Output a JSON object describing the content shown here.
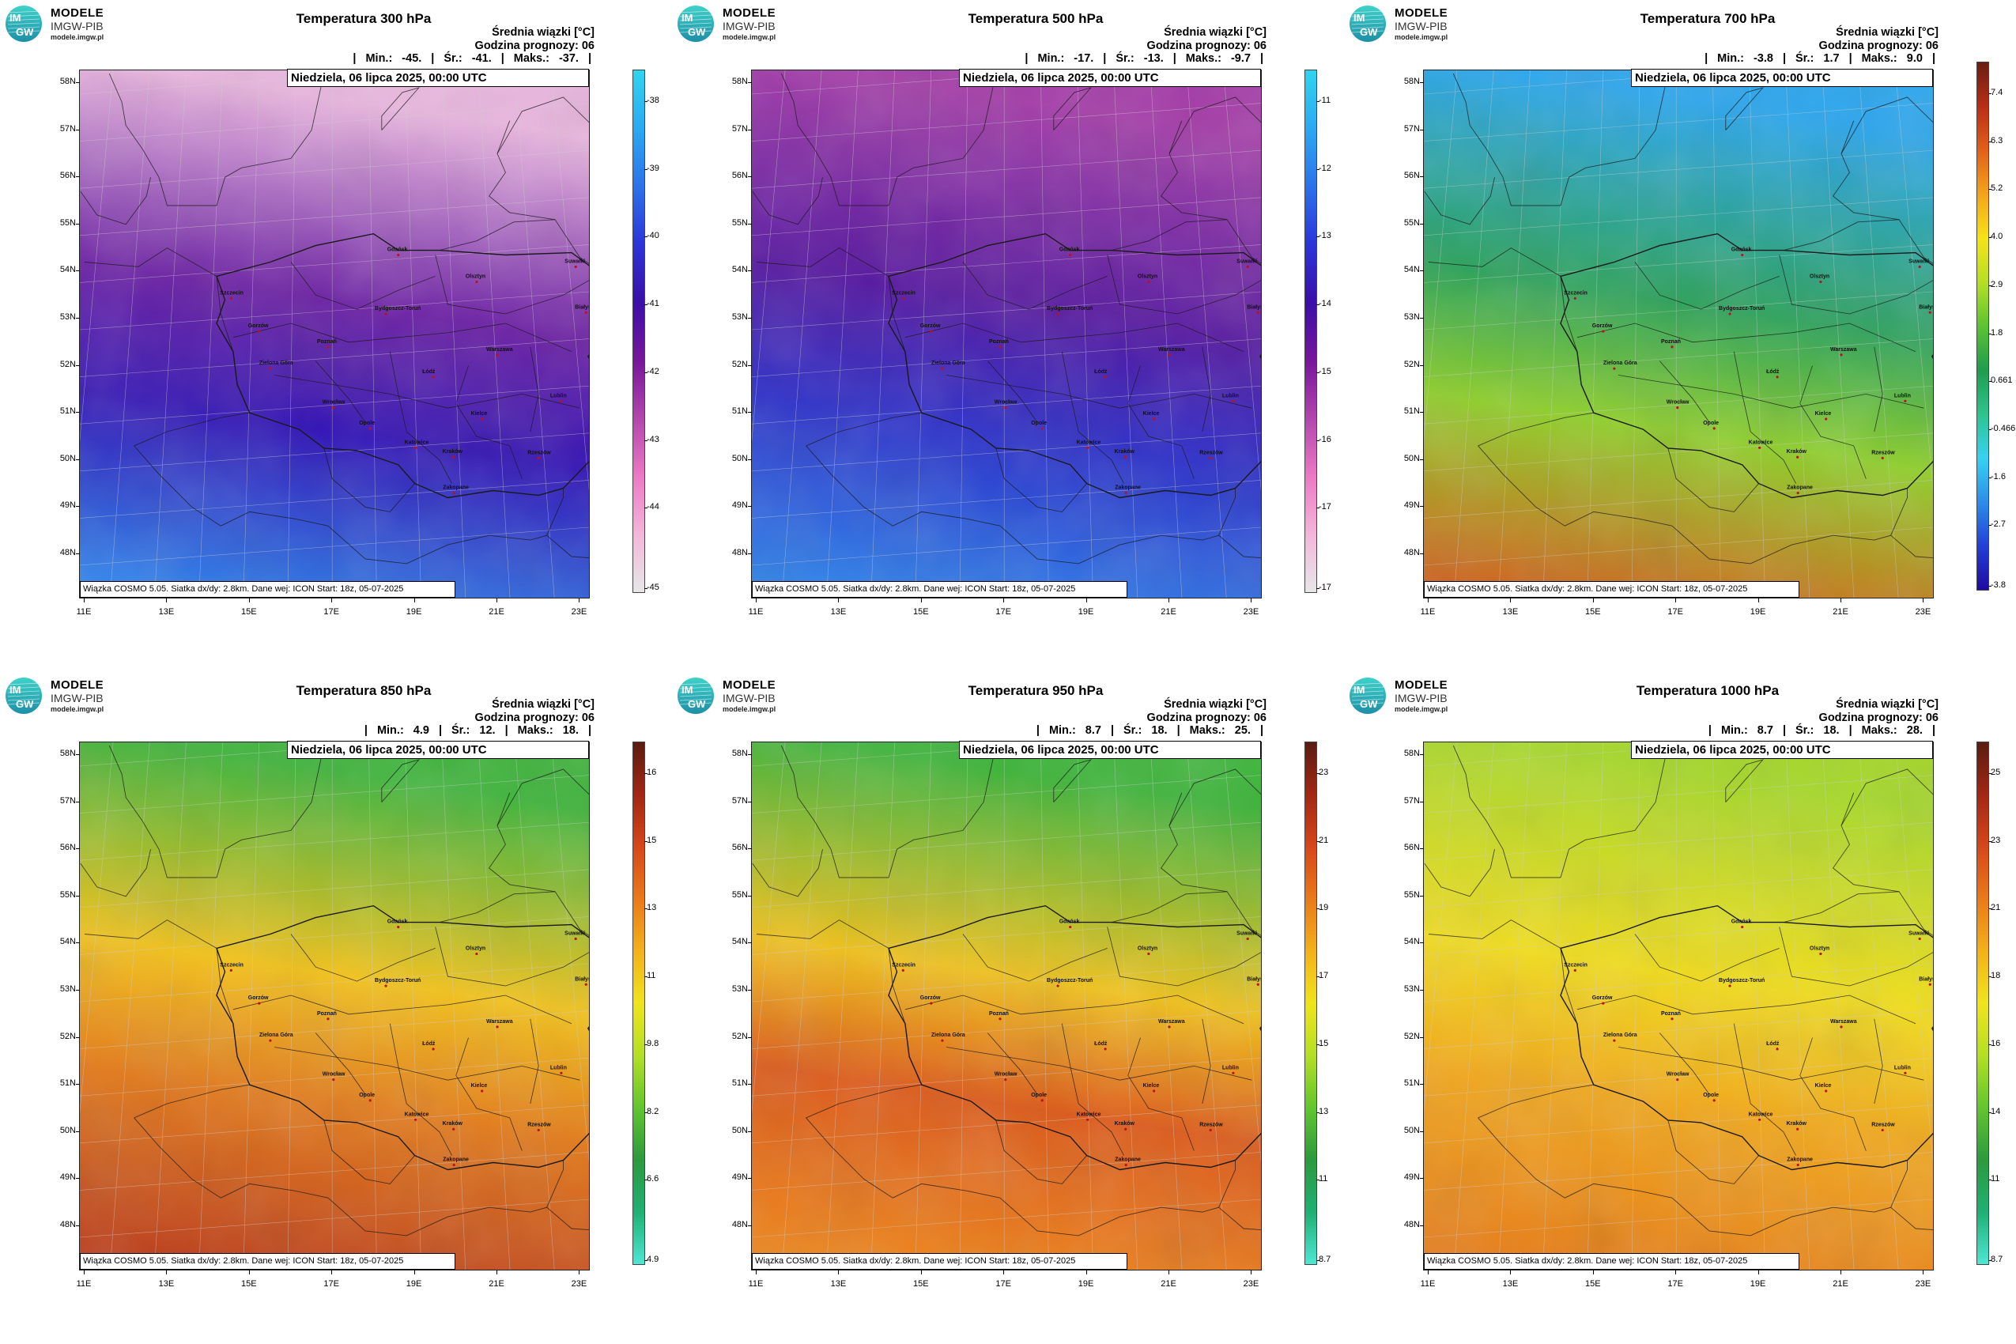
{
  "logo": {
    "brand": "MODELE",
    "org": "IMGW-PIB",
    "site": "modele.imgw.pl",
    "disk_text": "IM GW"
  },
  "common": {
    "avg_label": "Średnia wiązki [°C]",
    "forecast_label": "Godzina prognozy: 06",
    "date_label": "Niedziela, 06 lipca 2025, 00:00 UTC",
    "footer": "Wiązka COSMO 5.05. Siatka dx/dy: 2.8km. Dane wej: ICON Start: 18z, 05-07-2025",
    "stat_min_label": "Min.:",
    "stat_avg_label": "Śr.:",
    "stat_max_label": "Maks.:",
    "lat_labels": [
      "58N",
      "57N",
      "56N",
      "55N",
      "54N",
      "53N",
      "52N",
      "51N",
      "50N",
      "49N",
      "48N"
    ],
    "lon_labels": [
      "11E",
      "13E",
      "15E",
      "17E",
      "19E",
      "21E",
      "23E"
    ]
  },
  "cities": [
    {
      "name": "Gdańsk",
      "lon": 18.6,
      "lat": 54.35
    },
    {
      "name": "Suwałki",
      "lon": 22.9,
      "lat": 54.1
    },
    {
      "name": "Olsztyn",
      "lon": 20.5,
      "lat": 53.78
    },
    {
      "name": "Szczecin",
      "lon": 14.55,
      "lat": 53.43
    },
    {
      "name": "Białystok",
      "lon": 23.15,
      "lat": 53.13
    },
    {
      "name": "Bydgoszcz-Toruń",
      "lon": 18.3,
      "lat": 53.1
    },
    {
      "name": "Gorzów",
      "lon": 15.23,
      "lat": 52.73
    },
    {
      "name": "Poznań",
      "lon": 16.9,
      "lat": 52.4
    },
    {
      "name": "Warszawa",
      "lon": 21.0,
      "lat": 52.23
    },
    {
      "name": "Zielona Góra",
      "lon": 15.5,
      "lat": 51.94
    },
    {
      "name": "Łódź",
      "lon": 19.45,
      "lat": 51.76
    },
    {
      "name": "Lublin",
      "lon": 22.55,
      "lat": 51.25
    },
    {
      "name": "Wrocław",
      "lon": 17.03,
      "lat": 51.11
    },
    {
      "name": "Kielce",
      "lon": 20.63,
      "lat": 50.87
    },
    {
      "name": "Opole",
      "lon": 17.92,
      "lat": 50.67
    },
    {
      "name": "Katowice",
      "lon": 19.02,
      "lat": 50.26
    },
    {
      "name": "Kraków",
      "lon": 19.94,
      "lat": 50.06
    },
    {
      "name": "Rzeszów",
      "lon": 22.0,
      "lat": 50.04
    },
    {
      "name": "Zakopane",
      "lon": 19.95,
      "lat": 49.3
    }
  ],
  "panels": [
    {
      "title": "Temperatura 300 hPa",
      "stats": {
        "min": "-45.",
        "avg": "-41.",
        "max": "-37."
      },
      "colorbar": {
        "labels": [
          "-38",
          "-39",
          "-40",
          "-41",
          "-42",
          "-43",
          "-44",
          "-45"
        ],
        "top_label": "",
        "colors": [
          "#e7e7e7",
          "#f3b6da",
          "#ec79c4",
          "#b246ad",
          "#77169b",
          "#3a0ea8",
          "#2b35d8",
          "#2c72ea",
          "#2ba9f2",
          "#2fd5ef"
        ]
      },
      "field": {
        "n": "#ebb7e0",
        "mid": "#6a1fa3",
        "midlow": "#3416b5",
        "s": "#2b8cf0"
      }
    },
    {
      "title": "Temperatura 500 hPa",
      "stats": {
        "min": "-17.",
        "avg": "-13.",
        "max": "-9.7"
      },
      "colorbar": {
        "labels": [
          "-11",
          "-12",
          "-13",
          "-14",
          "-15",
          "-16",
          "-17",
          "-17"
        ],
        "top_label": "",
        "colors": [
          "#e7e7e7",
          "#f3b6da",
          "#ec79c4",
          "#b246ad",
          "#77169b",
          "#3a0ea8",
          "#2b35d8",
          "#2c72ea",
          "#2ba9f2",
          "#2fd5ef"
        ]
      },
      "field": {
        "n": "#a43ea8",
        "mid": "#5618a0",
        "midlow": "#2c2ec8",
        "s": "#2d8cef"
      }
    },
    {
      "title": "Temperatura 700 hPa",
      "stats": {
        "min": "-3.8",
        "avg": "1.7",
        "max": "9.0"
      },
      "colorbar": {
        "labels": [
          "7.4",
          "6.3",
          "5.2",
          "4.0",
          "2.9",
          "1.8",
          "0.661",
          "-0.466",
          "-1.6",
          "-2.7",
          "-3.8"
        ],
        "top_label": "",
        "colors": [
          "#1f0aa0",
          "#2240d6",
          "#2c8ee8",
          "#36d2f2",
          "#2fc38d",
          "#1f9c4e",
          "#5cc331",
          "#b6df25",
          "#f6e318",
          "#f3a41b",
          "#e2601a",
          "#b82e16",
          "#6a1d12"
        ]
      },
      "field": {
        "n": "#2aa6ee",
        "mid": "#2ca25a",
        "midlow": "#8fcf2a",
        "s": "#d9571a"
      }
    },
    {
      "title": "Temperatura 850 hPa",
      "stats": {
        "min": "4.9",
        "avg": "12.",
        "max": "18."
      },
      "colorbar": {
        "labels": [
          "16",
          "15",
          "13",
          "11",
          "9.8",
          "8.2",
          "6.6",
          "4.9"
        ],
        "top_label": "",
        "colors": [
          "#4fe6d3",
          "#1fb074",
          "#2c9a3e",
          "#63c52f",
          "#b4df24",
          "#f0e41c",
          "#f3b11a",
          "#e97a1a",
          "#d6471a",
          "#a22714",
          "#5a1c12"
        ]
      },
      "field": {
        "n": "#3fb43c",
        "mid": "#f2c21c",
        "midlow": "#e27a1a",
        "s": "#b7361a"
      }
    },
    {
      "title": "Temperatura 950 hPa",
      "stats": {
        "min": "8.7",
        "avg": "18.",
        "max": "25."
      },
      "colorbar": {
        "labels": [
          "23",
          "21",
          "19",
          "17",
          "15",
          "13",
          "11",
          "8.7"
        ],
        "top_label": "",
        "colors": [
          "#4fe6d3",
          "#1fb074",
          "#2c9a3e",
          "#63c52f",
          "#b4df24",
          "#f0e41c",
          "#f3b11a",
          "#e97a1a",
          "#d6471a",
          "#a22714",
          "#5a1c12"
        ]
      },
      "field": {
        "n": "#3fb43c",
        "mid": "#f0c21c",
        "midlow": "#dc5a1a",
        "s": "#ef8a1a"
      }
    },
    {
      "title": "Temperatura 1000 hPa",
      "stats": {
        "min": "8.7",
        "avg": "18.",
        "max": "28."
      },
      "colorbar": {
        "labels": [
          "25",
          "23",
          "21",
          "18",
          "16",
          "14",
          "11",
          "8.7"
        ],
        "top_label": "",
        "colors": [
          "#4fe6d3",
          "#1fb074",
          "#2c9a3e",
          "#63c52f",
          "#b4df24",
          "#f0e41c",
          "#f3b11a",
          "#e97a1a",
          "#d6471a",
          "#a22714",
          "#5a1c12"
        ]
      },
      "field": {
        "n": "#a6d82a",
        "mid": "#f1dc1c",
        "midlow": "#f1a81b",
        "s": "#e5781a"
      }
    }
  ]
}
